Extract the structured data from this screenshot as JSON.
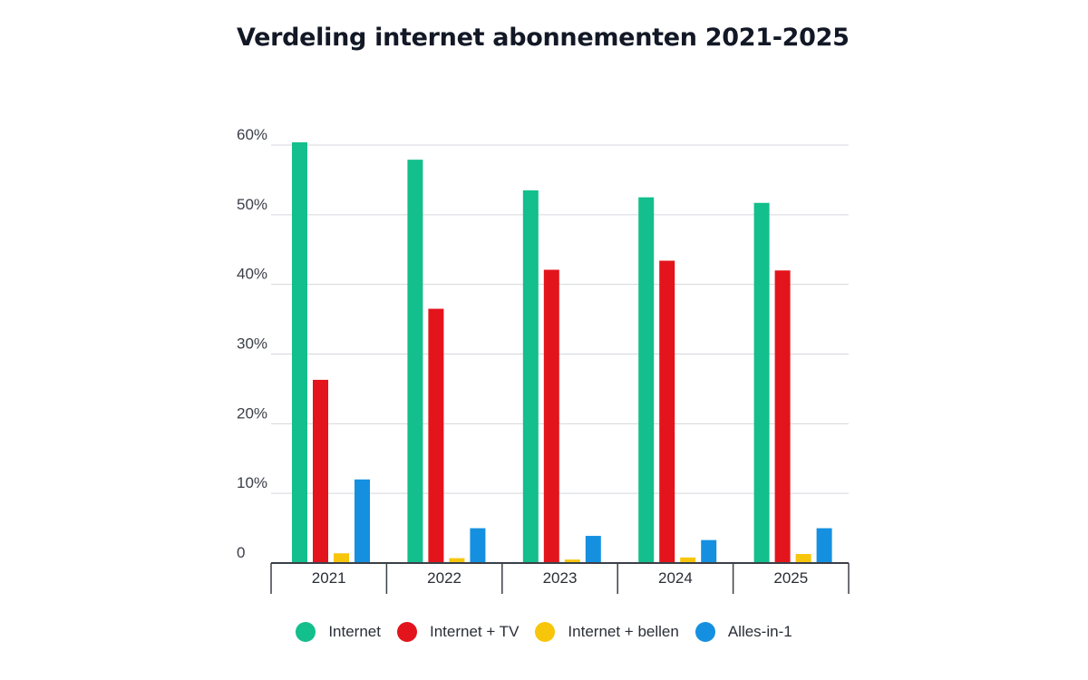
{
  "chart_data": {
    "type": "bar",
    "title": "Verdeling internet abonnementen 2021-2025",
    "xlabel": "",
    "ylabel": "",
    "ylim": [
      0,
      60
    ],
    "yticks": [
      {
        "value": 0,
        "label": "0"
      },
      {
        "value": 10,
        "label": "10%"
      },
      {
        "value": 20,
        "label": "20%"
      },
      {
        "value": 30,
        "label": "30%"
      },
      {
        "value": 40,
        "label": "40%"
      },
      {
        "value": 50,
        "label": "50%"
      },
      {
        "value": 60,
        "label": "60%"
      }
    ],
    "grid": true,
    "legend_position": "bottom",
    "categories": [
      "2021",
      "2022",
      "2023",
      "2024",
      "2025"
    ],
    "series": [
      {
        "name": "Internet",
        "color": "#13bf8c",
        "values": [
          60.4,
          57.9,
          53.5,
          52.5,
          51.7
        ]
      },
      {
        "name": "Internet + TV",
        "color": "#e3141c",
        "values": [
          26.3,
          36.5,
          42.1,
          43.4,
          42.0
        ]
      },
      {
        "name": "Internet + bellen",
        "color": "#f7c60a",
        "values": [
          1.4,
          0.7,
          0.5,
          0.8,
          1.3
        ]
      },
      {
        "name": "Alles-in-1",
        "color": "#1590e0",
        "values": [
          12.0,
          5.0,
          3.9,
          3.3,
          5.0
        ]
      }
    ]
  }
}
